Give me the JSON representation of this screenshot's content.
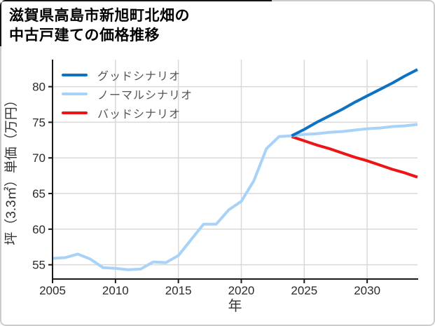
{
  "title": {
    "line1": "滋賀県高島市新旭町北畑の",
    "line2": "中古戸建ての価格推移"
  },
  "colors": {
    "good": "#0e72c2",
    "normal": "#a8d2f8",
    "bad": "#ec1414",
    "grid": "#d9d9d9",
    "spine": "#1a1a1a",
    "tick_text": "#2b2b2b",
    "axis_label_text": "#333333",
    "legend_text": "#555555",
    "card_border": "#cbcbcb"
  },
  "chart_data": {
    "type": "line",
    "title": "滋賀県高島市新旭町北畑の中古戸建ての価格推移",
    "xlabel": "年",
    "ylabel": "坪（3.3㎡）単価（万円）",
    "xlim": [
      2005,
      2034
    ],
    "ylim": [
      53,
      83.8
    ],
    "xticks": [
      2005,
      2010,
      2015,
      2020,
      2025,
      2030
    ],
    "yticks": [
      55,
      60,
      65,
      70,
      75,
      80
    ],
    "grid": true,
    "legend_position": "upper left",
    "series": [
      {
        "id": "good",
        "name": "グッドシナリオ",
        "color": "#0e72c2",
        "x": [
          2024,
          2025,
          2026,
          2027,
          2028,
          2029,
          2030,
          2031,
          2032,
          2033,
          2034
        ],
        "values": [
          73.1,
          74.0,
          75.0,
          75.9,
          76.8,
          77.8,
          78.7,
          79.6,
          80.5,
          81.5,
          82.4
        ]
      },
      {
        "id": "normal",
        "name": "ノーマルシナリオ",
        "color": "#a8d2f8",
        "x": [
          2005,
          2006,
          2007,
          2008,
          2009,
          2010,
          2011,
          2012,
          2013,
          2014,
          2015,
          2016,
          2017,
          2018,
          2019,
          2020,
          2021,
          2022,
          2023,
          2024,
          2025,
          2026,
          2027,
          2028,
          2029,
          2030,
          2031,
          2032,
          2033,
          2034
        ],
        "values": [
          55.9,
          56.0,
          56.5,
          55.8,
          54.6,
          54.5,
          54.3,
          54.4,
          55.4,
          55.3,
          56.3,
          58.5,
          60.7,
          60.7,
          62.7,
          63.9,
          66.8,
          71.3,
          73.0,
          73.1,
          73.3,
          73.4,
          73.6,
          73.7,
          73.9,
          74.1,
          74.2,
          74.4,
          74.5,
          74.7
        ]
      },
      {
        "id": "bad",
        "name": "バッドシナリオ",
        "color": "#ec1414",
        "x": [
          2024,
          2025,
          2026,
          2027,
          2028,
          2029,
          2030,
          2031,
          2032,
          2033,
          2034
        ],
        "values": [
          73.0,
          72.4,
          71.8,
          71.3,
          70.7,
          70.1,
          69.6,
          69.0,
          68.4,
          67.9,
          67.3
        ]
      }
    ],
    "draw_order": [
      2,
      1,
      0
    ]
  }
}
